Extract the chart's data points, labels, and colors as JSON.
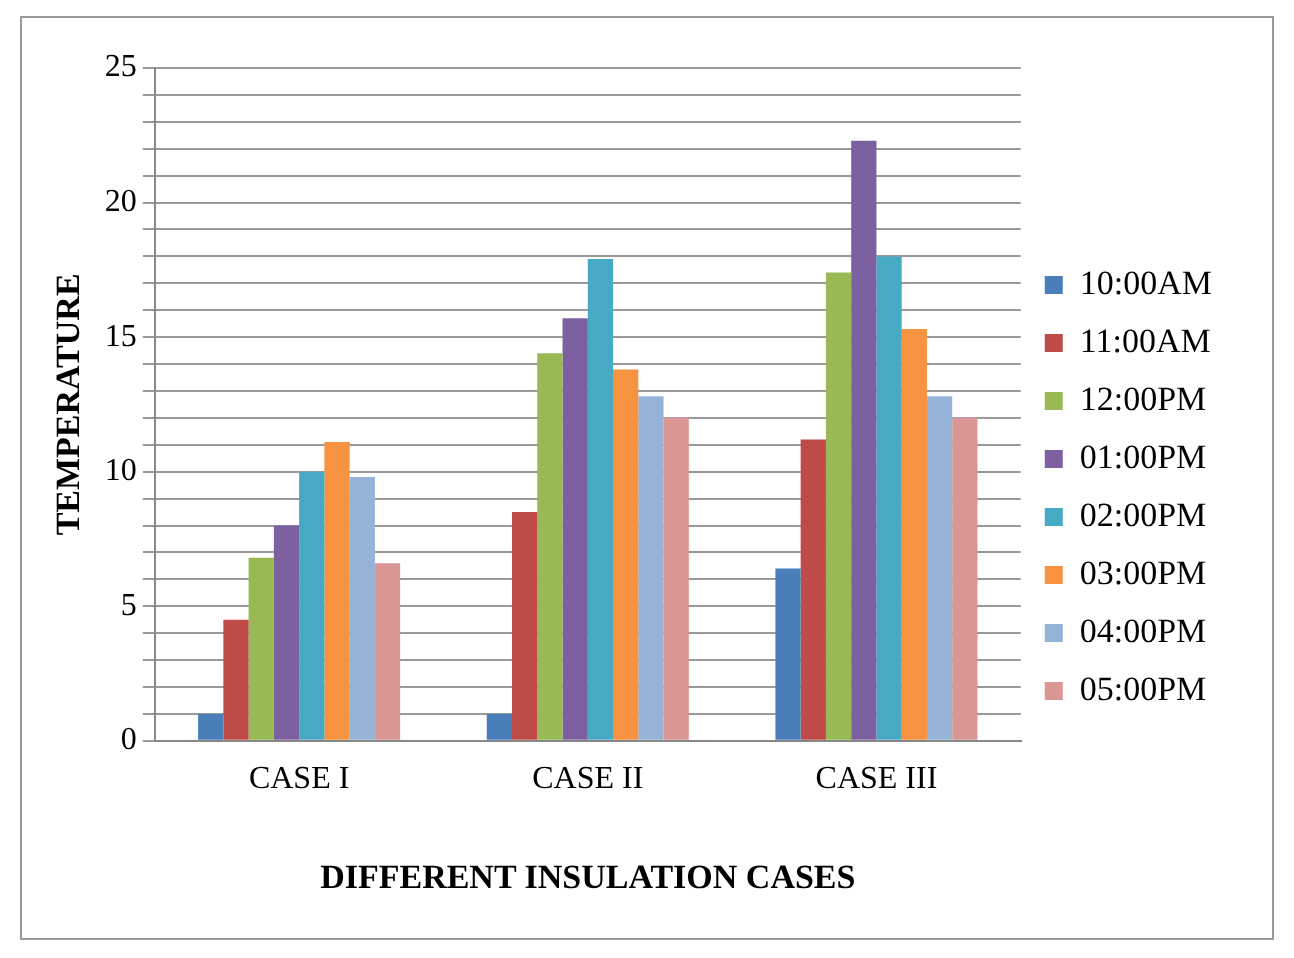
{
  "chart_data": {
    "type": "bar",
    "xlabel": "DIFFERENT INSULATION CASES",
    "ylabel": "TEMPERATURE",
    "categories": [
      "CASE I",
      "CASE II",
      "CASE III"
    ],
    "series": [
      {
        "name": "10:00AM",
        "color": "#4a7ebb",
        "values": [
          1,
          1,
          6.4
        ]
      },
      {
        "name": "11:00AM",
        "color": "#be4b48",
        "values": [
          4.5,
          8.5,
          11.2
        ]
      },
      {
        "name": "12:00PM",
        "color": "#98b954",
        "values": [
          6.8,
          14.4,
          17.4
        ]
      },
      {
        "name": "01:00PM",
        "color": "#7d60a0",
        "values": [
          8,
          15.7,
          22.3
        ]
      },
      {
        "name": "02:00PM",
        "color": "#46aac5",
        "values": [
          10,
          17.9,
          18
        ]
      },
      {
        "name": "03:00PM",
        "color": "#f69240",
        "values": [
          11.1,
          13.8,
          15.3
        ]
      },
      {
        "name": "04:00PM",
        "color": "#95b3d7",
        "values": [
          9.8,
          12.8,
          12.8
        ]
      },
      {
        "name": "05:00PM",
        "color": "#d99694",
        "values": [
          6.6,
          12,
          12
        ]
      }
    ],
    "ylim": [
      0,
      25
    ],
    "yticks": [
      0,
      {
        "value": 1,
        "label": null
      },
      {
        "value": 2,
        "label": null
      },
      {
        "value": 3,
        "label": null
      },
      {
        "value": 4,
        "label": null
      },
      5,
      {
        "value": 6,
        "label": null
      },
      {
        "value": 7,
        "label": null
      },
      {
        "value": 8,
        "label": null
      },
      {
        "value": 9,
        "label": null
      },
      10,
      {
        "value": 11,
        "label": null
      },
      {
        "value": 12,
        "label": null
      },
      {
        "value": 13,
        "label": null
      },
      {
        "value": 14,
        "label": null
      },
      15,
      {
        "value": 16,
        "label": null
      },
      {
        "value": 17,
        "label": null
      },
      {
        "value": 18,
        "label": null
      },
      {
        "value": 19,
        "label": null
      },
      20,
      {
        "value": 21,
        "label": null
      },
      {
        "value": 22,
        "label": null
      },
      {
        "value": 23,
        "label": null
      },
      {
        "value": 24,
        "label": null
      },
      25
    ],
    "grid": "y",
    "legend": "right"
  }
}
